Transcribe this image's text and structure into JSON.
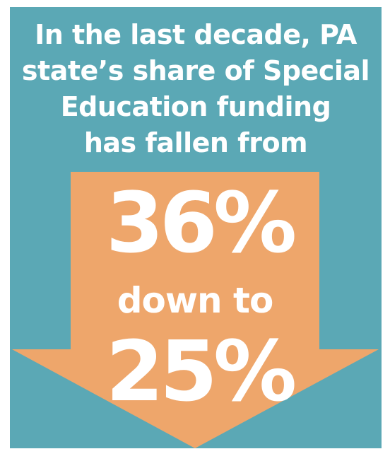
{
  "colors": {
    "background": "#5BA8B5",
    "arrow": "#EEA66B",
    "text": "#ffffff"
  },
  "headline": {
    "line1": "In the last decade, PA",
    "line2": "state’s share of Special",
    "line3": "Education funding",
    "line4": "has fallen from"
  },
  "figures": {
    "from_value": "36%",
    "connector": "down to",
    "to_value": "25%"
  }
}
